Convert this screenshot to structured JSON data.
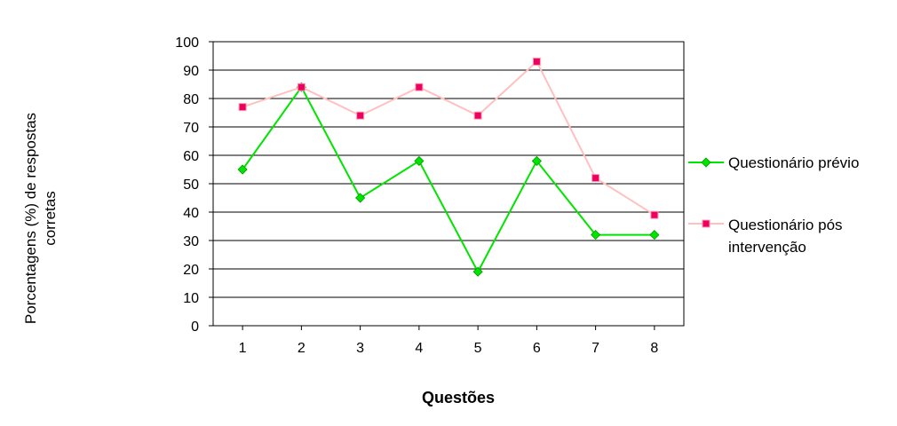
{
  "chart_data": {
    "type": "line",
    "categories": [
      "1",
      "2",
      "3",
      "4",
      "5",
      "6",
      "7",
      "8"
    ],
    "series": [
      {
        "name": "Questionário prévio",
        "values": [
          55,
          84,
          45,
          58,
          19,
          58,
          32,
          32
        ],
        "color": "#00e400",
        "marker": "diamond"
      },
      {
        "name_lines": [
          "Questionário pós",
          "intervenção"
        ],
        "values": [
          77,
          84,
          74,
          84,
          74,
          93,
          52,
          39
        ],
        "color": "#ffc0c0",
        "marker_color": "#ee0060",
        "marker": "square"
      }
    ],
    "xlabel": "Questões",
    "ylabel_lines": [
      "Porcentagens (%) de respostas",
      "corretas"
    ],
    "ylim": [
      0,
      100
    ],
    "ytick_step": 10,
    "yticks": [
      "0",
      "10",
      "20",
      "30",
      "40",
      "50",
      "60",
      "70",
      "80",
      "90",
      "100"
    ],
    "grid": true,
    "legend_position": "right"
  }
}
